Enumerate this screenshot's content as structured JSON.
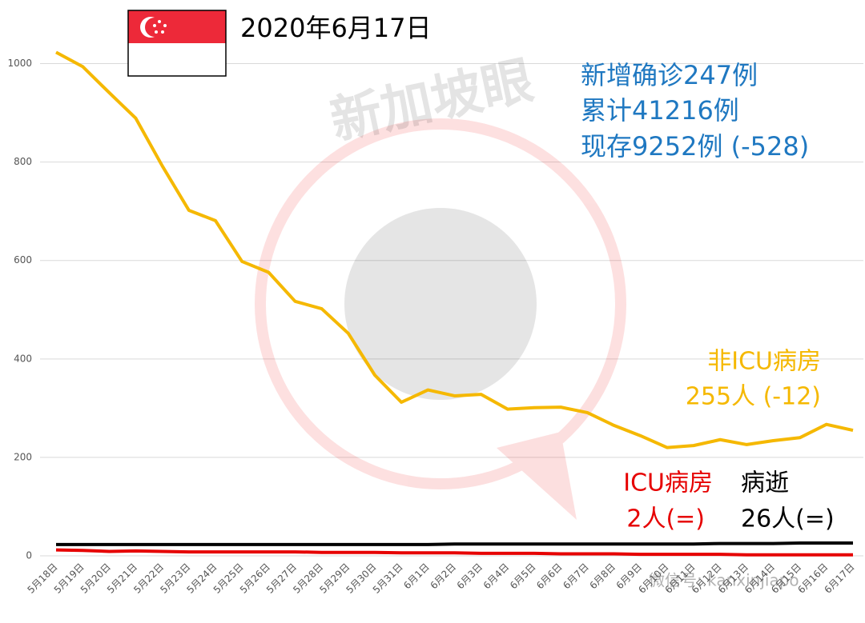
{
  "chart_data": {
    "type": "line",
    "title": "2020年6月17日",
    "summary": [
      "新增确诊247例",
      "累计41216例",
      "现存9252例 (-528)"
    ],
    "watermark": [
      "新加坡眼",
      "微信号: kanxinjiapo"
    ],
    "categories": [
      "5月18日",
      "5月19日",
      "5月20日",
      "5月21日",
      "5月22日",
      "5月23日",
      "5月24日",
      "5月25日",
      "5月26日",
      "5月27日",
      "5月28日",
      "5月29日",
      "5月30日",
      "5月31日",
      "6月1日",
      "6月2日",
      "6月3日",
      "6月4日",
      "6月5日",
      "6月6日",
      "6月7日",
      "6月8日",
      "6月9日",
      "6月10日",
      "6月11日",
      "6月12日",
      "6月13日",
      "6月14日",
      "6月15日",
      "6月16日",
      "6月17日"
    ],
    "series": [
      {
        "name": "非ICU病房",
        "label": "255人 (-12)",
        "color": "#f5b800",
        "values": [
          1023,
          994,
          941,
          889,
          792,
          702,
          681,
          598,
          576,
          517,
          502,
          452,
          367,
          312,
          337,
          325,
          328,
          298,
          301,
          302,
          291,
          265,
          244,
          220,
          224,
          236,
          226,
          234,
          240,
          267,
          255
        ]
      },
      {
        "name": "ICU病房",
        "label": "2人(=)",
        "color": "#e60000",
        "values": [
          12,
          11,
          9,
          10,
          9,
          8,
          8,
          8,
          8,
          8,
          7,
          7,
          7,
          6,
          6,
          6,
          5,
          5,
          5,
          4,
          4,
          4,
          3,
          3,
          3,
          3,
          2,
          2,
          2,
          2,
          2
        ]
      },
      {
        "name": "病逝",
        "label": "26人(=)",
        "color": "#000000",
        "values": [
          23,
          23,
          23,
          23,
          23,
          23,
          23,
          23,
          23,
          23,
          23,
          23,
          23,
          23,
          23,
          24,
          24,
          24,
          24,
          24,
          24,
          24,
          24,
          24,
          24,
          25,
          25,
          25,
          26,
          26,
          26
        ]
      }
    ],
    "ylim": [
      0,
      1100
    ],
    "yticks": [
      0,
      200,
      400,
      600,
      800,
      1000
    ],
    "grid": true
  }
}
